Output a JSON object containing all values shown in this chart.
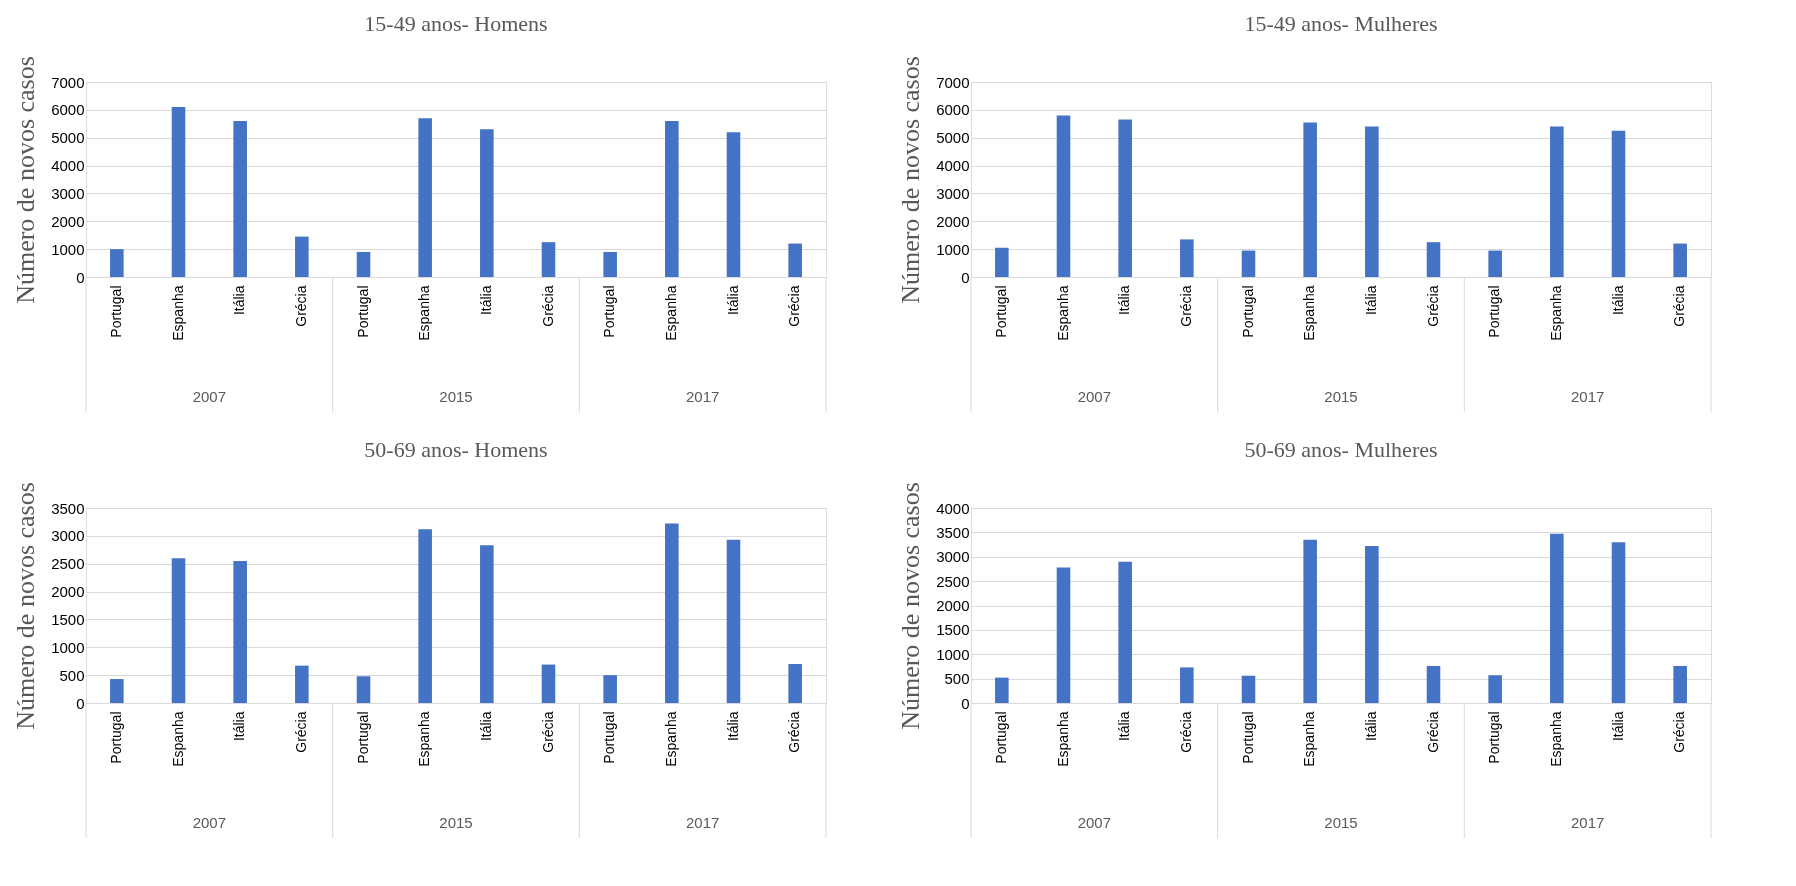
{
  "chart_data": [
    {
      "type": "bar",
      "title": "15-49 anos- Homens",
      "ylabel": "Número de novos casos",
      "categories": [
        "Portugal",
        "Espanha",
        "Itália",
        "Grécia",
        "Portugal",
        "Espanha",
        "Itália",
        "Grécia",
        "Portugal",
        "Espanha",
        "Itália",
        "Grécia"
      ],
      "values": [
        1000,
        6100,
        5600,
        1450,
        900,
        5700,
        5300,
        1250,
        900,
        5600,
        5200,
        1200
      ],
      "color": "#4472c4",
      "ylim": [
        0,
        7000
      ],
      "yticks": [
        0,
        1000,
        2000,
        3000,
        4000,
        5000,
        6000,
        7000
      ],
      "grid": "y",
      "annotations": [
        "2007",
        "2015",
        "2017"
      ]
    },
    {
      "type": "bar",
      "title": "15-49 anos- Mulheres",
      "ylabel": "Número de novos casos",
      "categories": [
        "Portugal",
        "Espanha",
        "Itália",
        "Grécia",
        "Portugal",
        "Espanha",
        "Itália",
        "Grécia",
        "Portugal",
        "Espanha",
        "Itália",
        "Grécia"
      ],
      "values": [
        1050,
        5800,
        5650,
        1350,
        950,
        5550,
        5400,
        1250,
        950,
        5400,
        5250,
        1200
      ],
      "color": "#4472c4",
      "ylim": [
        0,
        7000
      ],
      "yticks": [
        0,
        1000,
        2000,
        3000,
        4000,
        5000,
        6000,
        7000
      ],
      "grid": "y",
      "annotations": [
        "2007",
        "2015",
        "2017"
      ]
    },
    {
      "type": "bar",
      "title": "50-69 anos- Homens",
      "ylabel": "Número de novos casos",
      "categories": [
        "Portugal",
        "Espanha",
        "Itália",
        "Grécia",
        "Portugal",
        "Espanha",
        "Itália",
        "Grécia",
        "Portugal",
        "Espanha",
        "Itália",
        "Grécia"
      ],
      "values": [
        430,
        2600,
        2550,
        670,
        480,
        3120,
        2830,
        690,
        500,
        3220,
        2930,
        700
      ],
      "color": "#4472c4",
      "ylim": [
        0,
        3500
      ],
      "yticks": [
        0,
        500,
        1000,
        1500,
        2000,
        2500,
        3000,
        3500
      ],
      "grid": "y",
      "annotations": [
        "2007",
        "2015",
        "2017"
      ]
    },
    {
      "type": "bar",
      "title": "50-69 anos- Mulheres",
      "ylabel": "Número de novos casos",
      "categories": [
        "Portugal",
        "Espanha",
        "Itália",
        "Grécia",
        "Portugal",
        "Espanha",
        "Itália",
        "Grécia",
        "Portugal",
        "Espanha",
        "Itália",
        "Grécia"
      ],
      "values": [
        520,
        2780,
        2900,
        730,
        560,
        3350,
        3220,
        760,
        570,
        3470,
        3300,
        760
      ],
      "color": "#4472c4",
      "ylim": [
        0,
        4000
      ],
      "yticks": [
        0,
        500,
        1000,
        1500,
        2000,
        2500,
        3000,
        3500,
        4000
      ],
      "grid": "y",
      "annotations": [
        "2007",
        "2015",
        "2017"
      ]
    }
  ]
}
